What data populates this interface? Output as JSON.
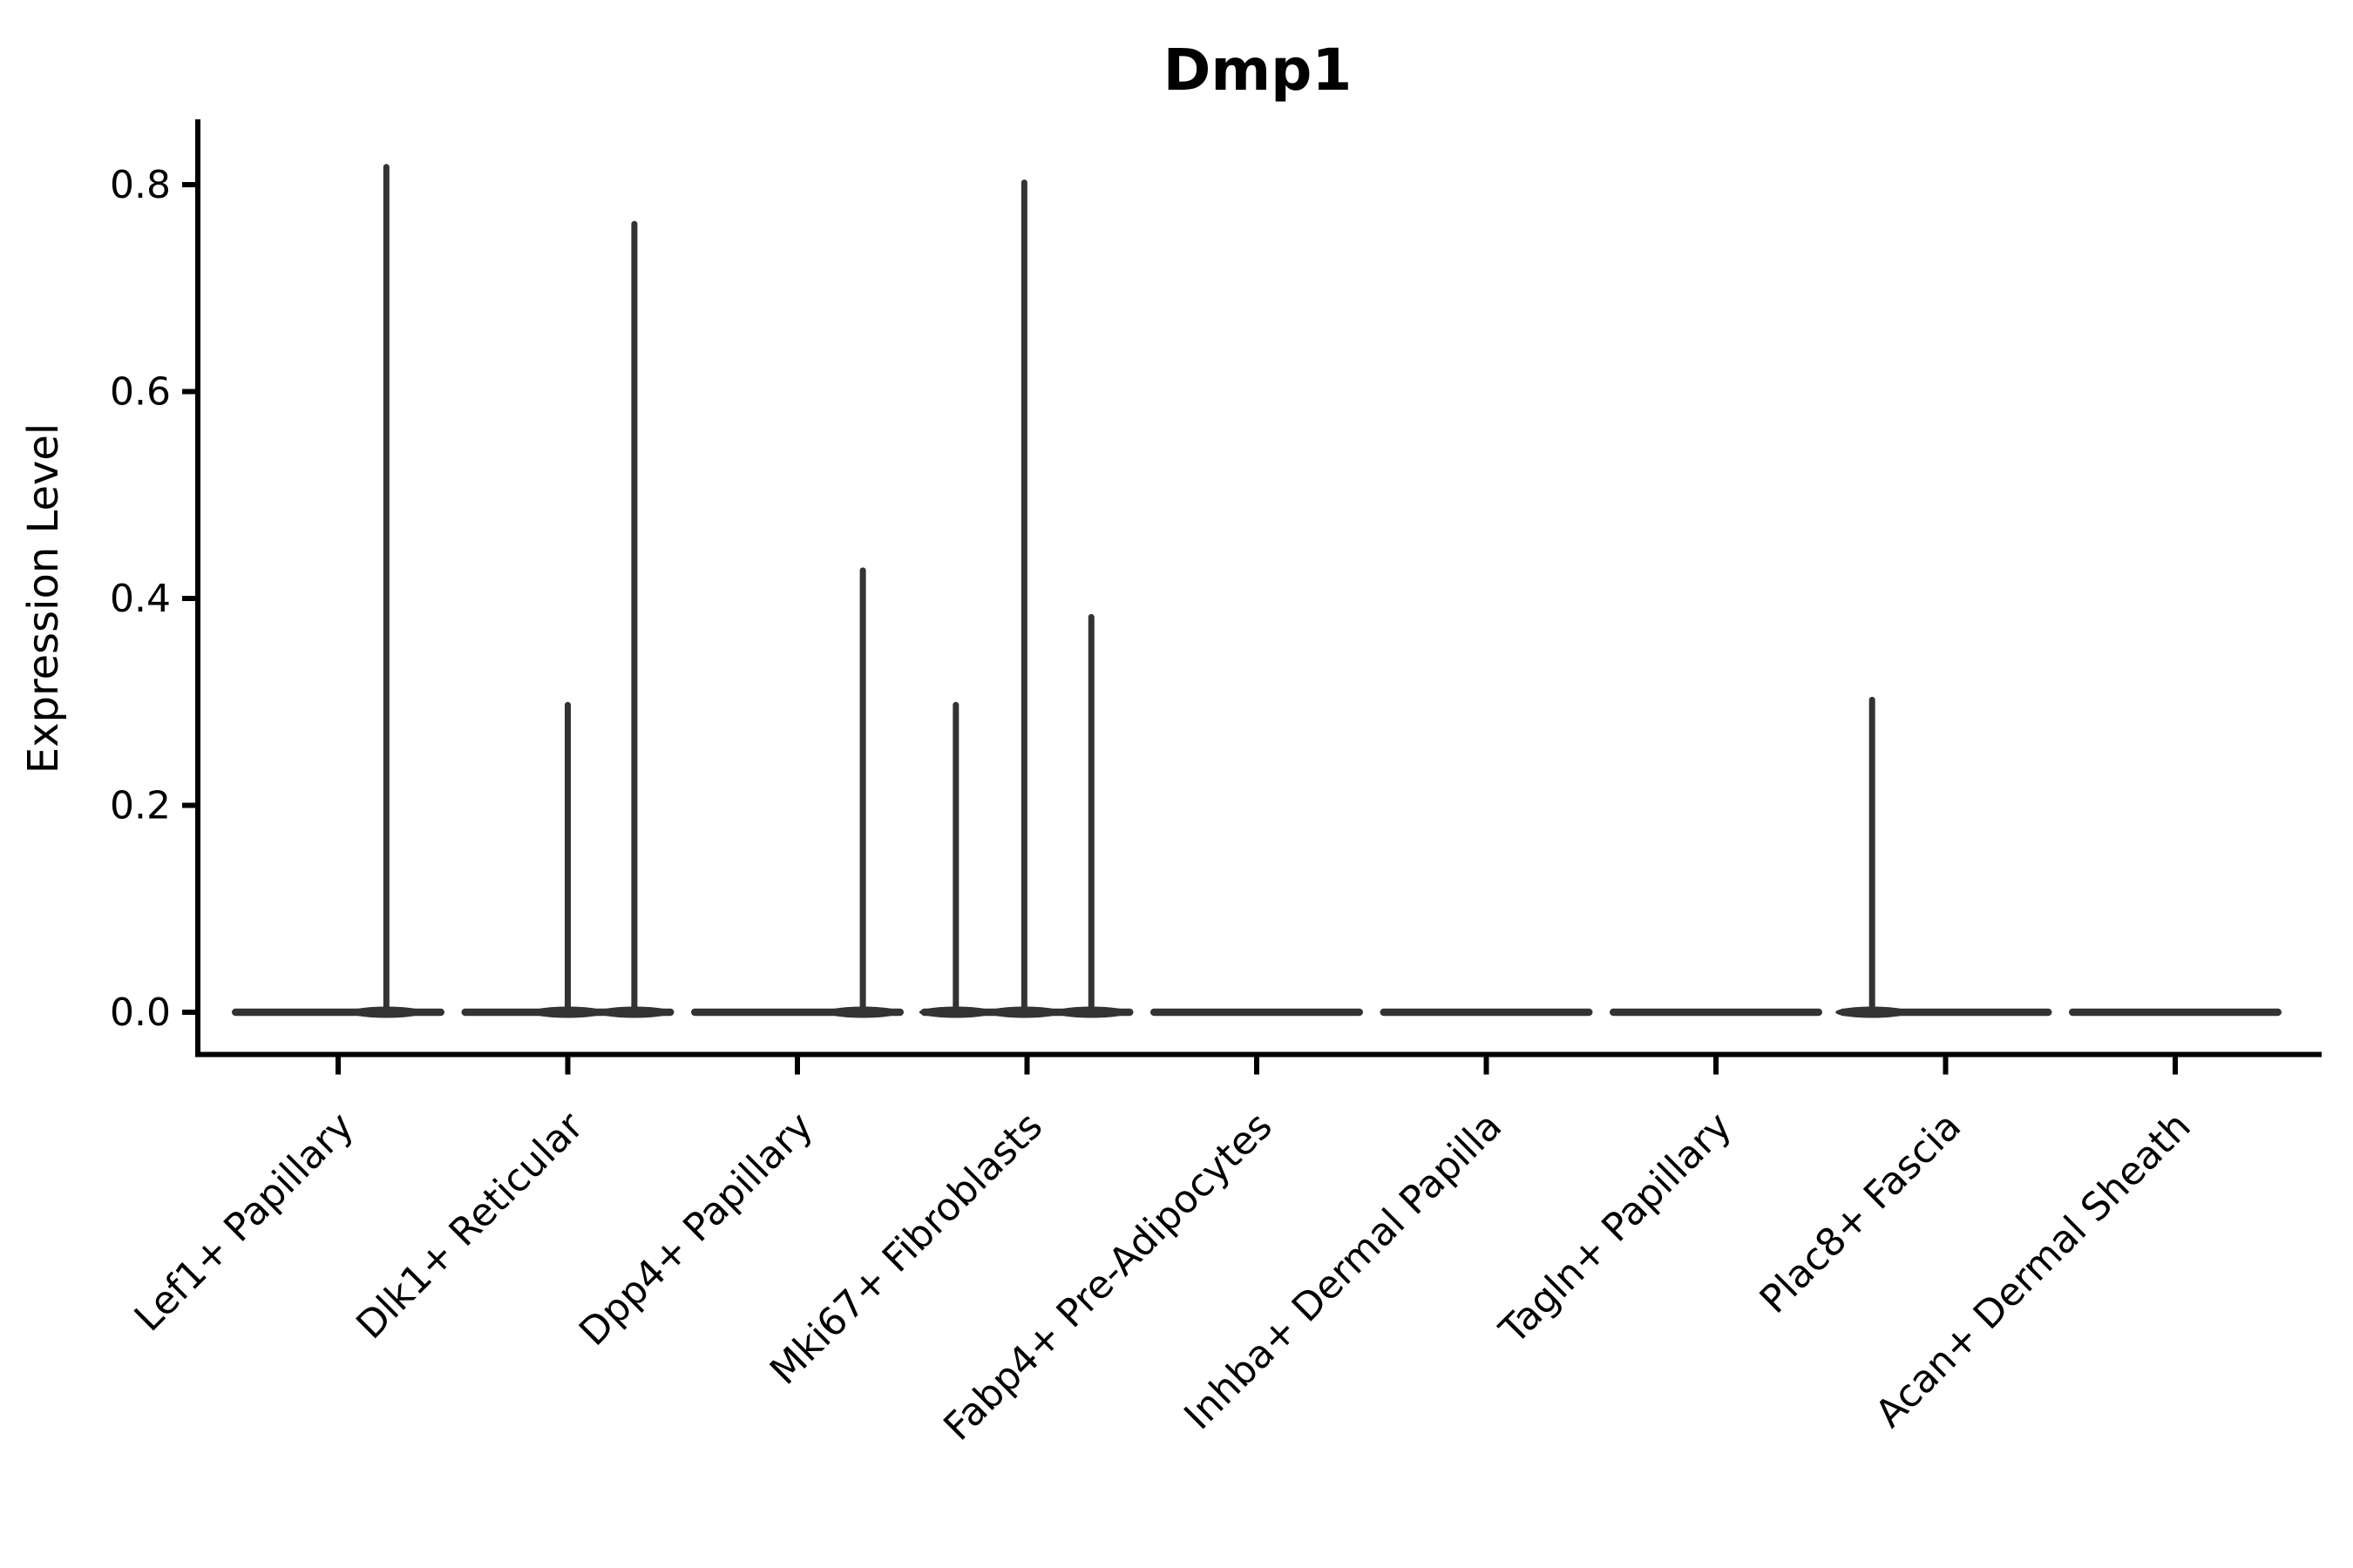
{
  "colors": {
    "background": "#ffffff",
    "ink": "#000000",
    "violin": "#333333"
  },
  "chart_data": {
    "type": "violin",
    "title": "Dmp1",
    "xlabel": "",
    "ylabel": "Expression Level",
    "yticks": [
      0.0,
      0.2,
      0.4,
      0.6,
      0.8
    ],
    "ylim": [
      -0.04,
      0.86
    ],
    "grid": false,
    "legend": null,
    "categories": [
      "Lef1+ Papillary",
      "Dlk1+ Reticular",
      "Dpp4+ Papillary",
      "Mki67+ Fibroblasts",
      "Fabp4+ Pre-Adipocytes",
      "Inhba+ Dermal Papilla",
      "Tagln+ Papillary",
      "Plac8+ Fascia",
      "Acan+ Dermal Sheath"
    ],
    "violins": [
      {
        "category": "Lef1+ Papillary",
        "base_value": 0.0,
        "spikes": [
          {
            "value": 0.82,
            "offset_frac": 0.21
          }
        ]
      },
      {
        "category": "Dlk1+ Reticular",
        "base_value": 0.0,
        "spikes": [
          {
            "value": 0.3,
            "offset_frac": 0.0
          },
          {
            "value": 0.765,
            "offset_frac": 0.29
          }
        ]
      },
      {
        "category": "Dpp4+ Papillary",
        "base_value": 0.0,
        "spikes": [
          {
            "value": 0.43,
            "offset_frac": 0.285
          }
        ]
      },
      {
        "category": "Mki67+ Fibroblasts",
        "base_value": 0.0,
        "spikes": [
          {
            "value": 0.3,
            "offset_frac": -0.31
          },
          {
            "value": 0.805,
            "offset_frac": -0.012
          },
          {
            "value": 0.385,
            "offset_frac": 0.28
          }
        ]
      },
      {
        "category": "Fabp4+ Pre-Adipocytes",
        "base_value": 0.0,
        "spikes": []
      },
      {
        "category": "Inhba+ Dermal Papilla",
        "base_value": 0.0,
        "spikes": []
      },
      {
        "category": "Tagln+ Papillary",
        "base_value": 0.0,
        "spikes": []
      },
      {
        "category": "Plac8+ Fascia",
        "base_value": 0.0,
        "spikes": [
          {
            "value": 0.305,
            "offset_frac": -0.32
          }
        ]
      },
      {
        "category": "Acan+ Dermal Sheath",
        "base_value": 0.0,
        "spikes": []
      }
    ]
  }
}
